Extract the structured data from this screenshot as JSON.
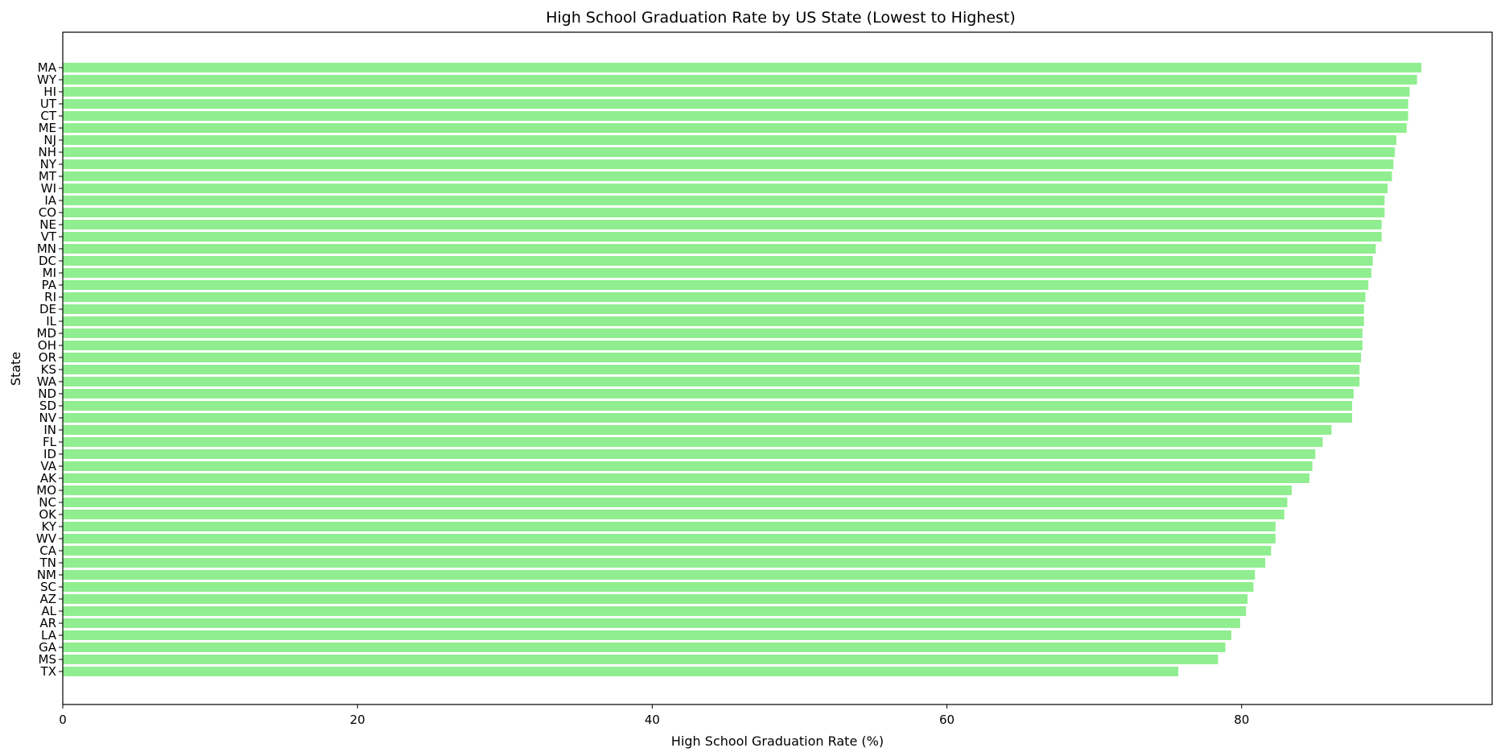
{
  "chart_data": {
    "type": "bar",
    "orientation": "horizontal",
    "title": "High School Graduation Rate by US State (Lowest to Highest)",
    "xlabel": "High School Graduation Rate (%)",
    "ylabel": "State",
    "xlim": [
      0,
      97
    ],
    "xticks": [
      0,
      20,
      40,
      60,
      80
    ],
    "grid": false,
    "bar_color": "#90EE90",
    "categories": [
      "MA",
      "WY",
      "HI",
      "UT",
      "CT",
      "ME",
      "NJ",
      "NH",
      "NY",
      "MT",
      "WI",
      "IA",
      "CO",
      "NE",
      "VT",
      "MN",
      "DC",
      "MI",
      "PA",
      "RI",
      "DE",
      "IL",
      "MD",
      "OH",
      "OR",
      "KS",
      "WA",
      "ND",
      "SD",
      "NV",
      "IN",
      "FL",
      "ID",
      "VA",
      "AK",
      "MO",
      "NC",
      "OK",
      "KY",
      "WV",
      "CA",
      "TN",
      "NM",
      "SC",
      "AZ",
      "AL",
      "AR",
      "LA",
      "GA",
      "MS",
      "TX"
    ],
    "values": [
      92.2,
      91.9,
      91.4,
      91.3,
      91.3,
      91.2,
      90.5,
      90.4,
      90.3,
      90.2,
      89.9,
      89.7,
      89.7,
      89.5,
      89.5,
      89.1,
      88.9,
      88.8,
      88.6,
      88.4,
      88.3,
      88.3,
      88.2,
      88.2,
      88.1,
      88.0,
      88.0,
      87.6,
      87.5,
      87.5,
      86.1,
      85.5,
      85.0,
      84.8,
      84.6,
      83.4,
      83.1,
      82.9,
      82.3,
      82.3,
      82.0,
      81.6,
      80.9,
      80.8,
      80.4,
      80.3,
      79.9,
      79.3,
      78.9,
      78.4,
      75.7
    ]
  }
}
